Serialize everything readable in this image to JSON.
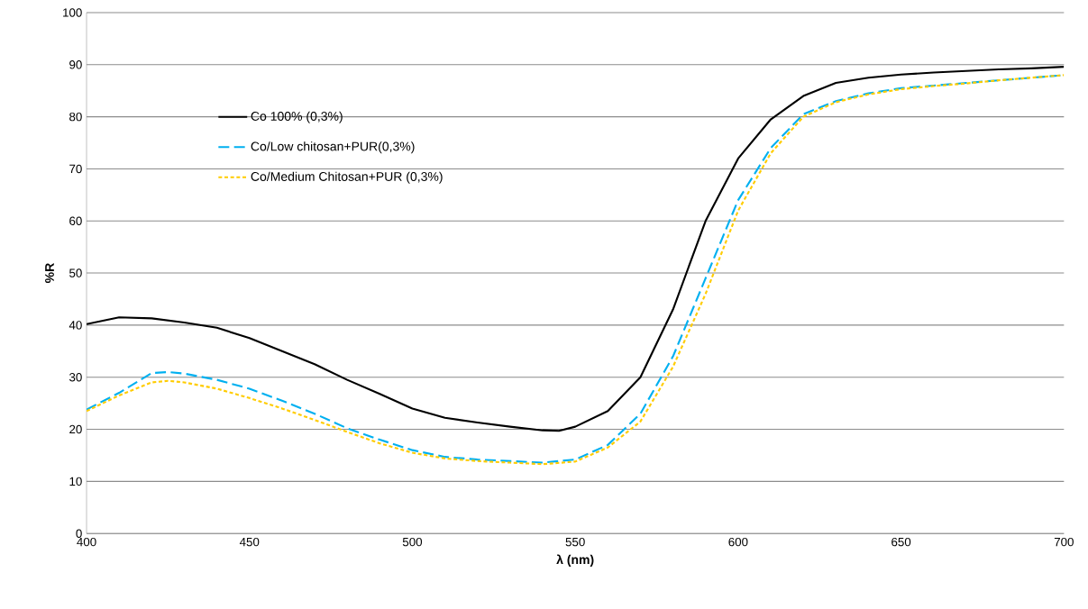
{
  "chart_data": {
    "type": "line",
    "xlabel": "λ (nm)",
    "ylabel": "%R",
    "xlim": [
      400,
      700
    ],
    "xticks": [
      400,
      450,
      500,
      550,
      600,
      650,
      700
    ],
    "ylim": [
      0,
      100
    ],
    "yticks": [
      0,
      10,
      20,
      30,
      40,
      50,
      60,
      70,
      80,
      90,
      100
    ],
    "grid": "y",
    "legend": "top left",
    "marker": "none",
    "series": [
      {
        "name": "Co 100%  (0,3%)",
        "color": "#000000",
        "line_style": "solid",
        "x": [
          400,
          410,
          420,
          430,
          440,
          450,
          460,
          470,
          480,
          490,
          500,
          510,
          520,
          530,
          540,
          545,
          550,
          560,
          570,
          580,
          590,
          600,
          610,
          620,
          630,
          640,
          650,
          660,
          670,
          680,
          690,
          700
        ],
        "values": [
          40.2,
          41.5,
          41.3,
          40.5,
          39.5,
          37.5,
          35,
          32.5,
          29.5,
          26.8,
          24,
          22.2,
          21.3,
          20.5,
          19.8,
          19.7,
          20.5,
          23.5,
          30,
          43,
          60,
          72,
          79.5,
          84,
          86.5,
          87.5,
          88.1,
          88.5,
          88.8,
          89.1,
          89.3,
          89.6
        ]
      },
      {
        "name": "Co/Low chitosan+PUR(0,3%)",
        "color": "#00b0f0",
        "line_style": "dashed",
        "x": [
          400,
          410,
          420,
          425,
          430,
          440,
          450,
          460,
          470,
          480,
          490,
          500,
          510,
          520,
          530,
          540,
          550,
          560,
          570,
          580,
          590,
          600,
          610,
          620,
          630,
          640,
          650,
          660,
          670,
          680,
          690,
          700
        ],
        "values": [
          23.8,
          27,
          30.8,
          31,
          30.7,
          29.5,
          27.8,
          25.5,
          23,
          20.2,
          18,
          16,
          14.7,
          14.2,
          13.9,
          13.6,
          14.2,
          17,
          23,
          34,
          49,
          64,
          74,
          80.5,
          83,
          84.5,
          85.5,
          86,
          86.5,
          87,
          87.5,
          88
        ]
      },
      {
        "name": "Co/Medium Chitosan+PUR  (0,3%)",
        "color": "#ffcc00",
        "line_style": "dotted",
        "x": [
          400,
          410,
          420,
          425,
          430,
          440,
          450,
          460,
          470,
          480,
          490,
          500,
          510,
          520,
          530,
          540,
          550,
          560,
          570,
          580,
          590,
          600,
          610,
          620,
          630,
          640,
          650,
          660,
          670,
          680,
          690,
          700
        ],
        "values": [
          23.5,
          26.5,
          29,
          29.3,
          29,
          27.8,
          26,
          24,
          21.8,
          19.5,
          17.3,
          15.5,
          14.4,
          13.9,
          13.6,
          13.3,
          13.8,
          16.5,
          21.5,
          32,
          46,
          62,
          73,
          80,
          82.8,
          84.3,
          85.3,
          85.9,
          86.4,
          87,
          87.5,
          88
        ]
      }
    ]
  }
}
